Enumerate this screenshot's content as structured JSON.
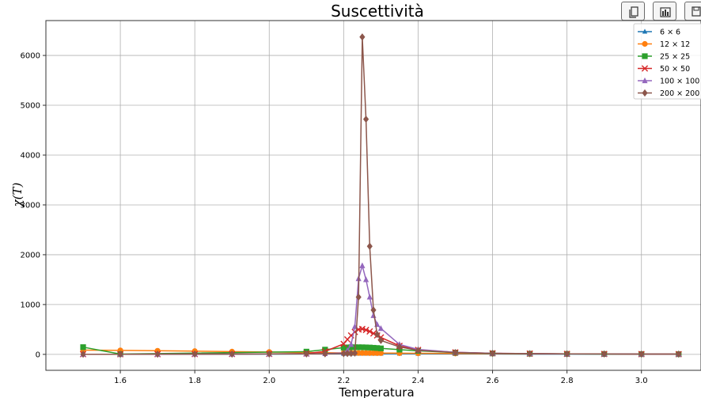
{
  "toolbar": [
    {
      "icon": "copy-icon"
    },
    {
      "icon": "bar-chart-icon"
    },
    {
      "icon": "save-icon"
    }
  ],
  "chart_data": {
    "type": "line",
    "title": "Suscettività",
    "xlabel": "Temperatura",
    "ylabel": "χ(T)",
    "xlim": [
      1.4,
      3.16
    ],
    "ylim": [
      -320,
      6700
    ],
    "x_ticks": [
      1.6,
      1.8,
      2.0,
      2.2,
      2.4,
      2.6,
      2.8,
      3.0
    ],
    "x_tick_labels": [
      "1.6",
      "1.8",
      "2.0",
      "2.2",
      "2.4",
      "2.6",
      "2.8",
      "3.0"
    ],
    "y_ticks": [
      0,
      1000,
      2000,
      3000,
      4000,
      5000,
      6000
    ],
    "y_tick_labels": [
      "0",
      "1000",
      "2000",
      "3000",
      "4000",
      "5000",
      "6000"
    ],
    "grid": true,
    "legend_position": "top-right",
    "series": [
      {
        "name": "6 × 6",
        "color": "#1f77b4",
        "marker": "triangle-star",
        "x": [
          1.5,
          1.6,
          1.7,
          1.8,
          1.9,
          2.0,
          2.1,
          2.15,
          2.2,
          2.21,
          2.22,
          2.23,
          2.24,
          2.25,
          2.26,
          2.27,
          2.28,
          2.29,
          2.3,
          2.35,
          2.4,
          2.5,
          2.6,
          2.7,
          2.8,
          2.9,
          3.0,
          3.1
        ],
        "y": [
          2,
          3,
          3,
          4,
          5,
          6,
          8,
          10,
          12,
          13,
          13,
          14,
          14,
          14,
          14,
          14,
          14,
          14,
          14,
          13,
          12,
          10,
          8,
          6,
          5,
          4,
          3,
          3
        ]
      },
      {
        "name": "12 × 12",
        "color": "#ff7f0e",
        "marker": "circle",
        "x": [
          1.5,
          1.6,
          1.7,
          1.8,
          1.9,
          2.0,
          2.1,
          2.15,
          2.2,
          2.21,
          2.22,
          2.23,
          2.24,
          2.25,
          2.26,
          2.27,
          2.28,
          2.29,
          2.3,
          2.35,
          2.4,
          2.5,
          2.6,
          2.7,
          2.8,
          2.9,
          3.0,
          3.1
        ],
        "y": [
          85,
          80,
          72,
          65,
          55,
          47,
          38,
          34,
          30,
          29,
          29,
          28,
          28,
          27,
          27,
          26,
          26,
          25,
          25,
          24,
          22,
          18,
          14,
          11,
          9,
          7,
          6,
          5
        ]
      },
      {
        "name": "25 × 25",
        "color": "#2ca02c",
        "marker": "square",
        "x": [
          1.5,
          1.6,
          2.1,
          2.15,
          2.2,
          2.21,
          2.22,
          2.23,
          2.24,
          2.25,
          2.26,
          2.27,
          2.28,
          2.29,
          2.3,
          2.35,
          2.4,
          2.5,
          2.6,
          2.7,
          2.8,
          2.9,
          3.0,
          3.1
        ],
        "y": [
          145,
          5,
          55,
          95,
          135,
          140,
          142,
          143,
          143,
          142,
          140,
          137,
          132,
          127,
          120,
          95,
          70,
          35,
          20,
          13,
          9,
          7,
          5,
          4
        ]
      },
      {
        "name": "50 × 50",
        "color": "#d62728",
        "marker": "x",
        "x": [
          1.5,
          1.6,
          1.7,
          1.8,
          1.9,
          2.0,
          2.1,
          2.15,
          2.2,
          2.21,
          2.22,
          2.23,
          2.24,
          2.25,
          2.26,
          2.27,
          2.28,
          2.29,
          2.3,
          2.35,
          2.4,
          2.5,
          2.6,
          2.7,
          2.8,
          2.9,
          3.0,
          3.1
        ],
        "y": [
          3,
          3,
          4,
          5,
          7,
          10,
          15,
          60,
          210,
          300,
          380,
          450,
          500,
          510,
          490,
          460,
          420,
          380,
          340,
          170,
          90,
          40,
          22,
          15,
          10,
          8,
          6,
          5
        ]
      },
      {
        "name": "100 × 100",
        "color": "#9467bd",
        "marker": "triangle",
        "x": [
          1.5,
          1.6,
          1.7,
          1.8,
          1.9,
          2.0,
          2.1,
          2.15,
          2.2,
          2.21,
          2.22,
          2.23,
          2.24,
          2.25,
          2.26,
          2.27,
          2.28,
          2.29,
          2.3,
          2.35,
          2.4,
          2.5,
          2.6,
          2.7,
          2.8,
          2.9,
          3.0,
          3.1
        ],
        "y": [
          3,
          3,
          4,
          5,
          6,
          8,
          10,
          15,
          30,
          80,
          200,
          560,
          1520,
          1780,
          1500,
          1150,
          780,
          600,
          520,
          200,
          100,
          40,
          22,
          15,
          10,
          8,
          6,
          5
        ]
      },
      {
        "name": "200 × 200",
        "color": "#8c564b",
        "marker": "diamond",
        "x": [
          1.5,
          1.6,
          1.7,
          1.8,
          1.9,
          2.0,
          2.1,
          2.15,
          2.2,
          2.21,
          2.22,
          2.23,
          2.24,
          2.25,
          2.26,
          2.27,
          2.28,
          2.29,
          2.3,
          2.35,
          2.4,
          2.5,
          2.6,
          2.7,
          2.8,
          2.9,
          3.0,
          3.1
        ],
        "y": [
          3,
          3,
          4,
          5,
          6,
          8,
          10,
          12,
          15,
          18,
          20,
          25,
          1150,
          6370,
          4720,
          2170,
          890,
          400,
          280,
          150,
          80,
          35,
          20,
          14,
          10,
          8,
          6,
          5
        ]
      }
    ]
  }
}
